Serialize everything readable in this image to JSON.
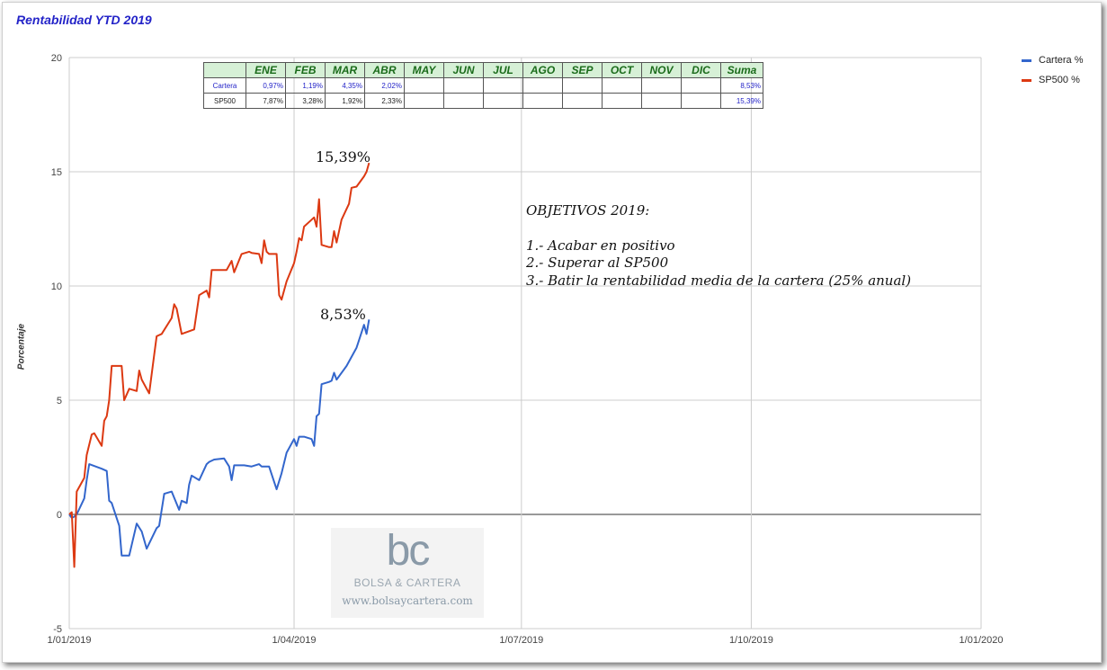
{
  "title": "Rentabilidad YTD 2019",
  "chart_data": {
    "type": "line",
    "title": "Rentabilidad YTD 2019",
    "xlabel": "",
    "ylabel": "Porcentaje",
    "ylim": [
      -5,
      20
    ],
    "yticks": [
      "20",
      "15",
      "10",
      "5",
      "0",
      "-5"
    ],
    "xticks": [
      "1/01/2019",
      "1/04/2019",
      "1/07/2019",
      "1/10/2019",
      "1/01/2020"
    ],
    "grid": true,
    "legend": "right",
    "series": [
      {
        "name": "Cartera %",
        "color": "#3366cc",
        "points": [
          [
            "2019-01-01",
            0.0
          ],
          [
            "2019-01-02",
            -0.15
          ],
          [
            "2019-01-03",
            -0.1
          ],
          [
            "2019-01-04",
            0.0
          ],
          [
            "2019-01-07",
            0.7
          ],
          [
            "2019-01-08",
            1.5
          ],
          [
            "2019-01-09",
            2.2
          ],
          [
            "2019-01-14",
            2.0
          ],
          [
            "2019-01-16",
            1.9
          ],
          [
            "2019-01-17",
            0.6
          ],
          [
            "2019-01-18",
            0.5
          ],
          [
            "2019-01-21",
            -0.5
          ],
          [
            "2019-01-22",
            -1.8
          ],
          [
            "2019-01-25",
            -1.8
          ],
          [
            "2019-01-28",
            -0.4
          ],
          [
            "2019-01-30",
            -0.75
          ],
          [
            "2019-02-01",
            -1.5
          ],
          [
            "2019-02-05",
            -0.6
          ],
          [
            "2019-02-06",
            -0.5
          ],
          [
            "2019-02-08",
            0.9
          ],
          [
            "2019-02-11",
            1.0
          ],
          [
            "2019-02-14",
            0.2
          ],
          [
            "2019-02-15",
            0.6
          ],
          [
            "2019-02-17",
            0.5
          ],
          [
            "2019-02-18",
            1.3
          ],
          [
            "2019-02-19",
            1.7
          ],
          [
            "2019-02-22",
            1.5
          ],
          [
            "2019-02-25",
            2.2
          ],
          [
            "2019-02-26",
            2.3
          ],
          [
            "2019-02-28",
            2.4
          ],
          [
            "2019-03-04",
            2.45
          ],
          [
            "2019-03-06",
            2.1
          ],
          [
            "2019-03-07",
            1.5
          ],
          [
            "2019-03-08",
            2.15
          ],
          [
            "2019-03-12",
            2.15
          ],
          [
            "2019-03-15",
            2.1
          ],
          [
            "2019-03-18",
            2.2
          ],
          [
            "2019-03-19",
            2.1
          ],
          [
            "2019-03-22",
            2.1
          ],
          [
            "2019-03-25",
            1.1
          ],
          [
            "2019-03-27",
            1.8
          ],
          [
            "2019-03-29",
            2.7
          ],
          [
            "2019-04-01",
            3.3
          ],
          [
            "2019-04-02",
            3.0
          ],
          [
            "2019-04-03",
            3.4
          ],
          [
            "2019-04-05",
            3.4
          ],
          [
            "2019-04-08",
            3.3
          ],
          [
            "2019-04-09",
            3.0
          ],
          [
            "2019-04-10",
            4.3
          ],
          [
            "2019-04-11",
            4.4
          ],
          [
            "2019-04-12",
            5.7
          ],
          [
            "2019-04-15",
            5.8
          ],
          [
            "2019-04-16",
            5.85
          ],
          [
            "2019-04-17",
            6.2
          ],
          [
            "2019-04-18",
            5.9
          ],
          [
            "2019-04-22",
            6.5
          ],
          [
            "2019-04-26",
            7.3
          ],
          [
            "2019-04-29",
            8.3
          ],
          [
            "2019-04-30",
            7.9
          ],
          [
            "2019-05-01",
            8.53
          ]
        ]
      },
      {
        "name": "SP500 %",
        "color": "#dc3912",
        "points": [
          [
            "2019-01-01",
            0.0
          ],
          [
            "2019-01-02",
            0.1
          ],
          [
            "2019-01-03",
            -2.3
          ],
          [
            "2019-01-04",
            1.0
          ],
          [
            "2019-01-07",
            1.6
          ],
          [
            "2019-01-08",
            2.6
          ],
          [
            "2019-01-10",
            3.5
          ],
          [
            "2019-01-11",
            3.55
          ],
          [
            "2019-01-14",
            3.0
          ],
          [
            "2019-01-15",
            4.1
          ],
          [
            "2019-01-16",
            4.3
          ],
          [
            "2019-01-17",
            5.0
          ],
          [
            "2019-01-18",
            6.5
          ],
          [
            "2019-01-22",
            6.5
          ],
          [
            "2019-01-23",
            5.0
          ],
          [
            "2019-01-25",
            5.5
          ],
          [
            "2019-01-28",
            5.4
          ],
          [
            "2019-01-29",
            6.3
          ],
          [
            "2019-01-30",
            5.9
          ],
          [
            "2019-02-01",
            5.5
          ],
          [
            "2019-02-02",
            5.3
          ],
          [
            "2019-02-04",
            7.0
          ],
          [
            "2019-02-05",
            7.8
          ],
          [
            "2019-02-07",
            7.9
          ],
          [
            "2019-02-11",
            8.6
          ],
          [
            "2019-02-12",
            9.2
          ],
          [
            "2019-02-13",
            9.0
          ],
          [
            "2019-02-15",
            7.9
          ],
          [
            "2019-02-20",
            8.1
          ],
          [
            "2019-02-22",
            9.6
          ],
          [
            "2019-02-25",
            9.8
          ],
          [
            "2019-02-26",
            9.5
          ],
          [
            "2019-02-27",
            10.7
          ],
          [
            "2019-03-01",
            10.7
          ],
          [
            "2019-03-05",
            10.7
          ],
          [
            "2019-03-07",
            11.1
          ],
          [
            "2019-03-08",
            10.6
          ],
          [
            "2019-03-11",
            11.4
          ],
          [
            "2019-03-14",
            11.5
          ],
          [
            "2019-03-15",
            11.45
          ],
          [
            "2019-03-18",
            11.4
          ],
          [
            "2019-03-19",
            11.0
          ],
          [
            "2019-03-20",
            12.0
          ],
          [
            "2019-03-21",
            11.5
          ],
          [
            "2019-03-22",
            11.4
          ],
          [
            "2019-03-25",
            11.4
          ],
          [
            "2019-03-26",
            9.6
          ],
          [
            "2019-03-27",
            9.4
          ],
          [
            "2019-03-29",
            10.2
          ],
          [
            "2019-04-01",
            11.0
          ],
          [
            "2019-04-02",
            11.5
          ],
          [
            "2019-04-03",
            12.1
          ],
          [
            "2019-04-04",
            12.0
          ],
          [
            "2019-04-05",
            12.6
          ],
          [
            "2019-04-08",
            12.9
          ],
          [
            "2019-04-09",
            13.0
          ],
          [
            "2019-04-10",
            12.6
          ],
          [
            "2019-04-11",
            13.8
          ],
          [
            "2019-04-12",
            11.8
          ],
          [
            "2019-04-15",
            11.7
          ],
          [
            "2019-04-16",
            11.7
          ],
          [
            "2019-04-17",
            12.4
          ],
          [
            "2019-04-18",
            11.9
          ],
          [
            "2019-04-20",
            12.9
          ],
          [
            "2019-04-23",
            13.6
          ],
          [
            "2019-04-24",
            14.3
          ],
          [
            "2019-04-26",
            14.35
          ],
          [
            "2019-04-29",
            14.8
          ],
          [
            "2019-04-30",
            15.0
          ],
          [
            "2019-05-01",
            15.39
          ]
        ]
      }
    ],
    "end_labels": [
      "15,39%",
      "8,53%"
    ]
  },
  "legend": {
    "items": [
      {
        "label": "Cartera %",
        "color": "#3366cc"
      },
      {
        "label": "SP500 %",
        "color": "#dc3912"
      }
    ]
  },
  "returns_table": {
    "headers": [
      "",
      "ENE",
      "FEB",
      "MAR",
      "ABR",
      "MAY",
      "JUN",
      "JUL",
      "AGO",
      "SEP",
      "OCT",
      "NOV",
      "DIC",
      "Suma"
    ],
    "rows": [
      {
        "label": "Cartera",
        "values": [
          "0,97%",
          "1,19%",
          "4,35%",
          "2,02%",
          "",
          "",
          "",
          "",
          "",
          "",
          "",
          ""
        ],
        "suma": "8,53%"
      },
      {
        "label": "SP500",
        "values": [
          "7,87%",
          "3,28%",
          "1,92%",
          "2,33%",
          "",
          "",
          "",
          "",
          "",
          "",
          "",
          ""
        ],
        "suma": "15,39%"
      }
    ]
  },
  "objectives": {
    "title": "OBJETIVOS 2019:",
    "items": [
      "1.- Acabar en positivo",
      "2.- Superar al SP500",
      "3.- Batir la rentabilidad media de la cartera (25% anual)"
    ]
  },
  "watermark": {
    "logo": "bc",
    "name": "BOLSA & CARTERA",
    "url": "www.bolsaycartera.com"
  }
}
